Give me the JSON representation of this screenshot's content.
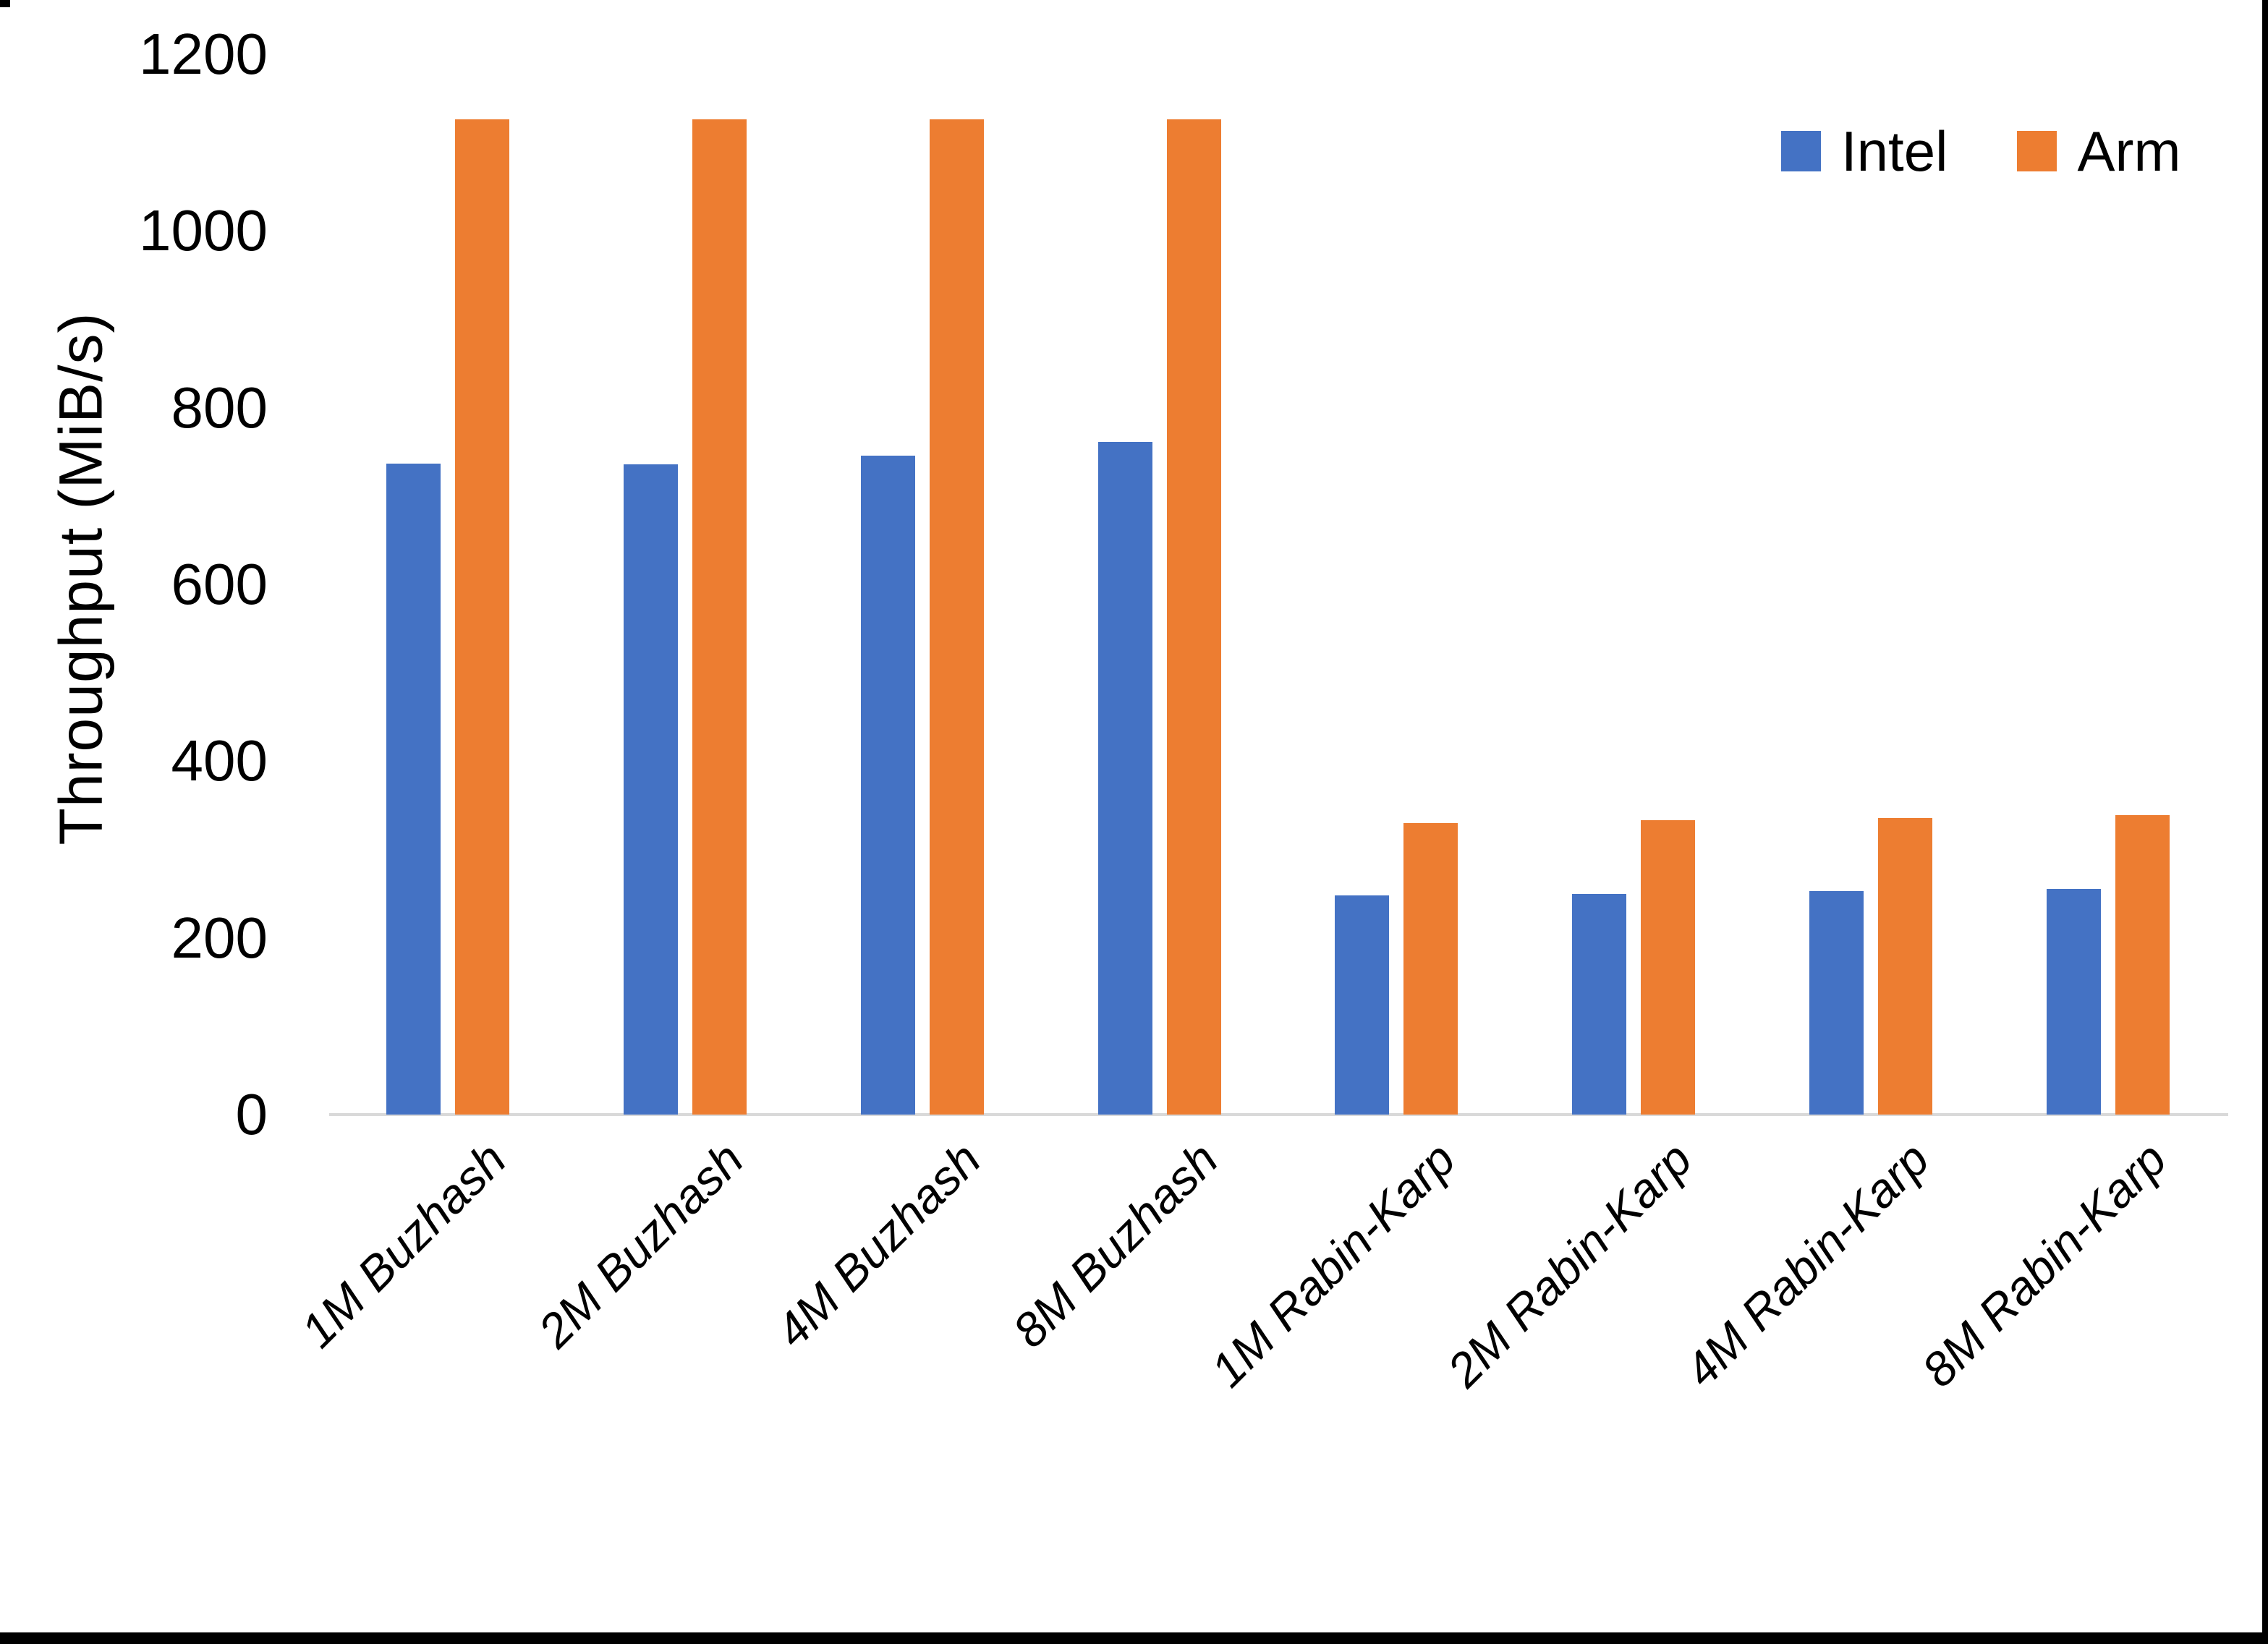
{
  "chart_data": {
    "type": "bar",
    "title": "",
    "xlabel": "",
    "ylabel": "Throughput (MiB/s)",
    "ylim": [
      0,
      1200
    ],
    "yticks": [
      0,
      200,
      400,
      600,
      800,
      1000,
      1200
    ],
    "grid": false,
    "legend_position": "top-right",
    "categories": [
      "1M Buzhash",
      "2M Buzhash",
      "4M Buzhash",
      "8M Buzhash",
      "1M Rabin-Karp",
      "2M Rabin-Karp",
      "4M Rabin-Karp",
      "8M Rabin-Karp"
    ],
    "series": [
      {
        "name": "Intel",
        "color": "#4472C4",
        "values": [
          737,
          736,
          746,
          761,
          248,
          250,
          253,
          255
        ]
      },
      {
        "name": "Arm",
        "color": "#ED7D31",
        "values": [
          1126,
          1126,
          1126,
          1126,
          330,
          333,
          336,
          339
        ]
      }
    ]
  },
  "colors": {
    "axis_line": "#D9D9D9",
    "text": "#000000",
    "background": "#FFFFFF",
    "border_bars": "#000000"
  }
}
